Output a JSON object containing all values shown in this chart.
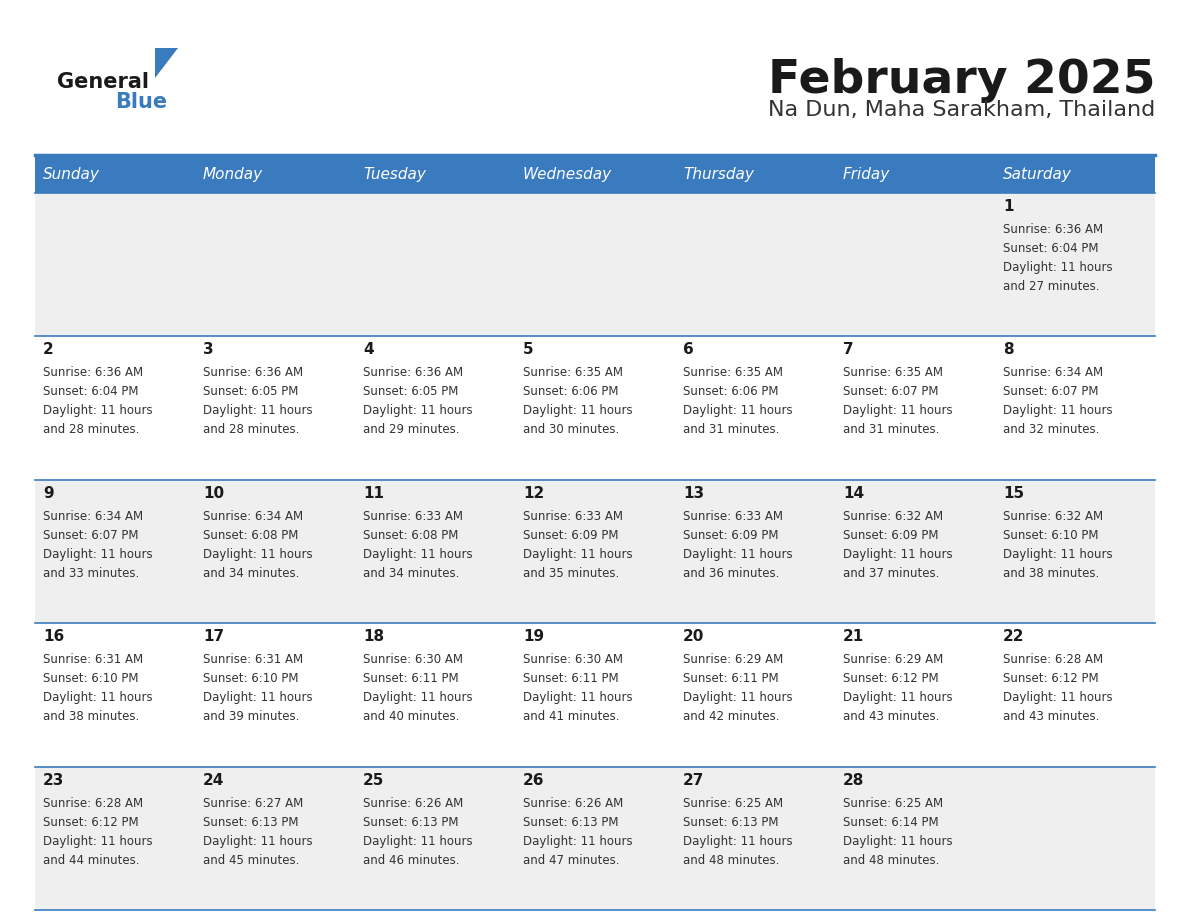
{
  "title": "February 2025",
  "subtitle": "Na Dun, Maha Sarakham, Thailand",
  "days_of_week": [
    "Sunday",
    "Monday",
    "Tuesday",
    "Wednesday",
    "Thursday",
    "Friday",
    "Saturday"
  ],
  "header_bg": "#3a7bbf",
  "header_text": "#ffffff",
  "row0_bg": "#efefef",
  "row1_bg": "#ffffff",
  "row2_bg": "#efefef",
  "row3_bg": "#ffffff",
  "row4_bg": "#efefef",
  "line_color": "#3a7bbf",
  "title_color": "#1a1a1a",
  "subtitle_color": "#333333",
  "cell_num_color": "#1a1a1a",
  "cell_text_color": "#333333",
  "logo_general_color": "#1a1a1a",
  "logo_blue_color": "#3a7bbf",
  "logo_triangle_color": "#3a7bbf",
  "calendar_data": [
    [
      {
        "day": "",
        "sunrise": "",
        "sunset": "",
        "daylight": ""
      },
      {
        "day": "",
        "sunrise": "",
        "sunset": "",
        "daylight": ""
      },
      {
        "day": "",
        "sunrise": "",
        "sunset": "",
        "daylight": ""
      },
      {
        "day": "",
        "sunrise": "",
        "sunset": "",
        "daylight": ""
      },
      {
        "day": "",
        "sunrise": "",
        "sunset": "",
        "daylight": ""
      },
      {
        "day": "",
        "sunrise": "",
        "sunset": "",
        "daylight": ""
      },
      {
        "day": "1",
        "sunrise": "6:36 AM",
        "sunset": "6:04 PM",
        "daylight": "11 hours and 27 minutes."
      }
    ],
    [
      {
        "day": "2",
        "sunrise": "6:36 AM",
        "sunset": "6:04 PM",
        "daylight": "11 hours and 28 minutes."
      },
      {
        "day": "3",
        "sunrise": "6:36 AM",
        "sunset": "6:05 PM",
        "daylight": "11 hours and 28 minutes."
      },
      {
        "day": "4",
        "sunrise": "6:36 AM",
        "sunset": "6:05 PM",
        "daylight": "11 hours and 29 minutes."
      },
      {
        "day": "5",
        "sunrise": "6:35 AM",
        "sunset": "6:06 PM",
        "daylight": "11 hours and 30 minutes."
      },
      {
        "day": "6",
        "sunrise": "6:35 AM",
        "sunset": "6:06 PM",
        "daylight": "11 hours and 31 minutes."
      },
      {
        "day": "7",
        "sunrise": "6:35 AM",
        "sunset": "6:07 PM",
        "daylight": "11 hours and 31 minutes."
      },
      {
        "day": "8",
        "sunrise": "6:34 AM",
        "sunset": "6:07 PM",
        "daylight": "11 hours and 32 minutes."
      }
    ],
    [
      {
        "day": "9",
        "sunrise": "6:34 AM",
        "sunset": "6:07 PM",
        "daylight": "11 hours and 33 minutes."
      },
      {
        "day": "10",
        "sunrise": "6:34 AM",
        "sunset": "6:08 PM",
        "daylight": "11 hours and 34 minutes."
      },
      {
        "day": "11",
        "sunrise": "6:33 AM",
        "sunset": "6:08 PM",
        "daylight": "11 hours and 34 minutes."
      },
      {
        "day": "12",
        "sunrise": "6:33 AM",
        "sunset": "6:09 PM",
        "daylight": "11 hours and 35 minutes."
      },
      {
        "day": "13",
        "sunrise": "6:33 AM",
        "sunset": "6:09 PM",
        "daylight": "11 hours and 36 minutes."
      },
      {
        "day": "14",
        "sunrise": "6:32 AM",
        "sunset": "6:09 PM",
        "daylight": "11 hours and 37 minutes."
      },
      {
        "day": "15",
        "sunrise": "6:32 AM",
        "sunset": "6:10 PM",
        "daylight": "11 hours and 38 minutes."
      }
    ],
    [
      {
        "day": "16",
        "sunrise": "6:31 AM",
        "sunset": "6:10 PM",
        "daylight": "11 hours and 38 minutes."
      },
      {
        "day": "17",
        "sunrise": "6:31 AM",
        "sunset": "6:10 PM",
        "daylight": "11 hours and 39 minutes."
      },
      {
        "day": "18",
        "sunrise": "6:30 AM",
        "sunset": "6:11 PM",
        "daylight": "11 hours and 40 minutes."
      },
      {
        "day": "19",
        "sunrise": "6:30 AM",
        "sunset": "6:11 PM",
        "daylight": "11 hours and 41 minutes."
      },
      {
        "day": "20",
        "sunrise": "6:29 AM",
        "sunset": "6:11 PM",
        "daylight": "11 hours and 42 minutes."
      },
      {
        "day": "21",
        "sunrise": "6:29 AM",
        "sunset": "6:12 PM",
        "daylight": "11 hours and 43 minutes."
      },
      {
        "day": "22",
        "sunrise": "6:28 AM",
        "sunset": "6:12 PM",
        "daylight": "11 hours and 43 minutes."
      }
    ],
    [
      {
        "day": "23",
        "sunrise": "6:28 AM",
        "sunset": "6:12 PM",
        "daylight": "11 hours and 44 minutes."
      },
      {
        "day": "24",
        "sunrise": "6:27 AM",
        "sunset": "6:13 PM",
        "daylight": "11 hours and 45 minutes."
      },
      {
        "day": "25",
        "sunrise": "6:26 AM",
        "sunset": "6:13 PM",
        "daylight": "11 hours and 46 minutes."
      },
      {
        "day": "26",
        "sunrise": "6:26 AM",
        "sunset": "6:13 PM",
        "daylight": "11 hours and 47 minutes."
      },
      {
        "day": "27",
        "sunrise": "6:25 AM",
        "sunset": "6:13 PM",
        "daylight": "11 hours and 48 minutes."
      },
      {
        "day": "28",
        "sunrise": "6:25 AM",
        "sunset": "6:14 PM",
        "daylight": "11 hours and 48 minutes."
      },
      {
        "day": "",
        "sunrise": "",
        "sunset": "",
        "daylight": ""
      }
    ]
  ]
}
